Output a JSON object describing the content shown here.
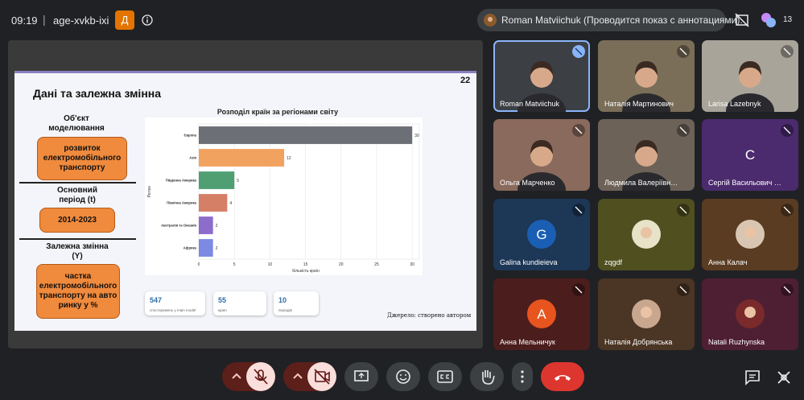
{
  "top_bar": {
    "time": "09:19",
    "meeting_code": "age-xvkb-ixi",
    "badge": "Д",
    "presenter": "Roman Matviichuk (Проводится показ с аннотациями).",
    "participant_count": "13"
  },
  "slide": {
    "title": "Дані та залежна змінна",
    "page_number": "22",
    "left_panel": {
      "object_label": "Об'єкт моделювання",
      "object_value": "розвиток електромобільного транспорту",
      "period_label": "Основний період (t)",
      "period_value": "2014-2023",
      "dependent_label": "Залежна змінна (Y)",
      "dependent_value": "частка електромобільного транспорту на авто ринку у %"
    },
    "chart": {
      "type": "bar",
      "orientation": "horizontal",
      "title": "Розподіл країн за регіонами світу",
      "xlabel": "Кількість країн",
      "ylabel": "Регіон",
      "categories": [
        "Європа",
        "Азія",
        "Південна Америка",
        "Північна Америка",
        "Австралія та Океанія",
        "Африка"
      ],
      "values": [
        30,
        12,
        5,
        4,
        2,
        2
      ],
      "colors": [
        "#6c6f75",
        "#f2a25f",
        "#4f9f73",
        "#d57f66",
        "#8c6dcb",
        "#7c8ae3"
      ],
      "xlim": [
        0,
        31
      ],
      "xticks": [
        0,
        5,
        10,
        15,
        20,
        25,
        30
      ],
      "grid": true
    },
    "stats": [
      {
        "value": "547",
        "label": "спостережень у main model"
      },
      {
        "value": "55",
        "label": "країн"
      },
      {
        "value": "10",
        "label": "періодів"
      }
    ],
    "source": "Джерело: створено автором"
  },
  "participants": [
    {
      "name": "Roman Matviichuk"
    },
    {
      "name": "Наталія Мартинович"
    },
    {
      "name": "Larisa Lazebnyk"
    },
    {
      "name": "Ольга Марченко"
    },
    {
      "name": "Людмила Валеріївн…"
    },
    {
      "name": "Сергій Васильович …",
      "avatar": "C"
    },
    {
      "name": "Galina kundieieva",
      "avatar": "G"
    },
    {
      "name": "zqgdf"
    },
    {
      "name": "Анна Калач"
    },
    {
      "name": "Анна Мельничук",
      "avatar": "A"
    },
    {
      "name": "Наталія Добрянська"
    },
    {
      "name": "Natali Ruzhynska"
    }
  ]
}
